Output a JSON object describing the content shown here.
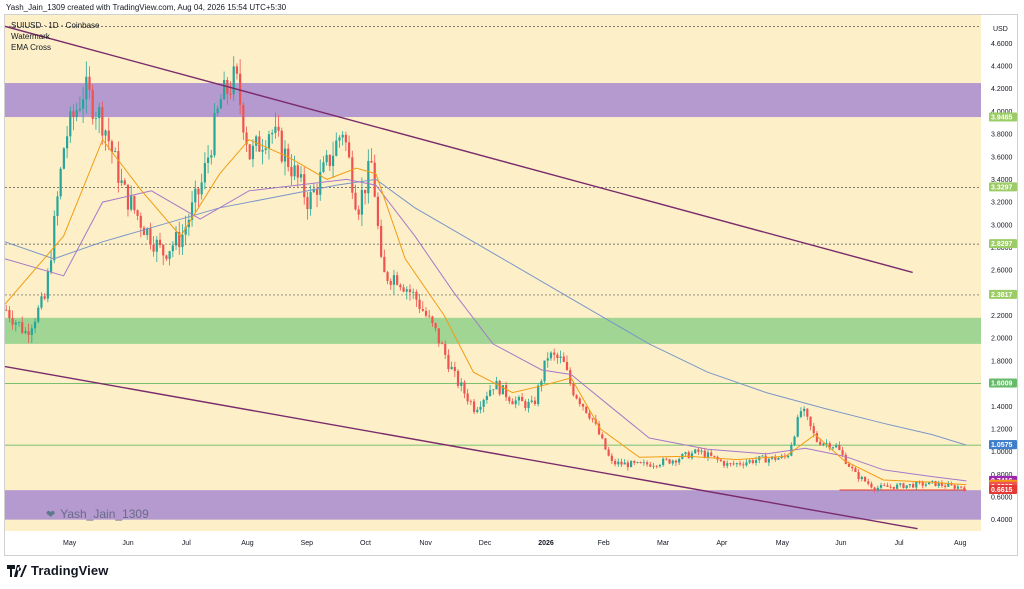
{
  "attribution": "Yash_Jain_1309 created with TradingView.com, Aug 04, 2026 15:54 UTC+5:30",
  "symbol": {
    "title": "SUIUSD · 1D · Coinbase",
    "watermark_label": "Watermark",
    "indicator": "EMA Cross"
  },
  "watermark_text": "Yash_Jain_1309",
  "brand": "TradingView",
  "colors": {
    "background": "#fdf0c8",
    "bull": "#26a69a",
    "bear": "#ef5350",
    "ema_fast": "#f39c12",
    "ema_mid": "#a678c8",
    "ema_slow": "#7b96c9",
    "zone_purple": "#a78bd0",
    "zone_green": "#8fd08a",
    "channel": "#7b2b6b",
    "support_red": "#e53935"
  },
  "chart_data": {
    "type": "candlestick",
    "currency": "USD",
    "ylim": [
      0.3,
      4.85
    ],
    "y_ticks": [
      "4.6000",
      "4.4000",
      "4.2000",
      "4.0000",
      "3.8000",
      "3.6000",
      "3.4000",
      "3.2000",
      "3.0000",
      "2.8000",
      "2.6000",
      "2.4000",
      "2.2000",
      "2.0000",
      "1.8000",
      "1.6000",
      "1.4000",
      "1.2000",
      "1.0000",
      "0.8000",
      "0.6000",
      "0.4000"
    ],
    "x_ticks": [
      "May",
      "Jun",
      "Jul",
      "Aug",
      "Sep",
      "Oct",
      "Nov",
      "Dec",
      "2026",
      "Feb",
      "Mar",
      "Apr",
      "May",
      "Jun",
      "Jul",
      "Aug"
    ],
    "price_labels": [
      {
        "value": 3.9465,
        "text": "3.9465",
        "bg": "#9ccc65"
      },
      {
        "value": 3.3297,
        "text": "3.3297",
        "bg": "#9ccc65"
      },
      {
        "value": 2.8297,
        "text": "2.8297",
        "bg": "#9ccc65"
      },
      {
        "value": 2.3817,
        "text": "2.3817",
        "bg": "#9ccc65"
      },
      {
        "value": 1.6009,
        "text": "1.6009",
        "bg": "#66bb6a"
      },
      {
        "value": 1.0576,
        "text": "1.0576",
        "bg": "#5c9bd6"
      },
      {
        "value": 1.0575,
        "text": "1.0575",
        "bg": "#3f7ecb"
      },
      {
        "value": 0.7416,
        "text": "0.7416",
        "bg": "#9c27b0"
      },
      {
        "value": 0.7073,
        "text": "0.7073",
        "bg": "#f39c12"
      },
      {
        "value": 0.6897,
        "text": "0.6897",
        "bg": "#ef5350"
      },
      {
        "value": 0.6615,
        "text": "0.6615",
        "bg": "#e53935"
      }
    ],
    "zones": [
      {
        "name": "resistance",
        "from": 3.95,
        "to": 4.25,
        "color": "#a78bd0"
      },
      {
        "name": "support",
        "from": 1.95,
        "to": 2.18,
        "color": "#8fd08a"
      },
      {
        "name": "base",
        "from": 0.4,
        "to": 0.66,
        "color": "#a78bd0"
      }
    ],
    "horizontal_lines": [
      {
        "value": 3.3297,
        "style": "dashed"
      },
      {
        "value": 2.8297,
        "style": "dashed"
      },
      {
        "value": 2.3817,
        "style": "dashed"
      },
      {
        "value": 1.6009,
        "style": "solid"
      },
      {
        "value": 1.0575,
        "style": "solid"
      },
      {
        "value": 4.75,
        "style": "dashed"
      }
    ],
    "channel": {
      "upper": [
        {
          "t": 0,
          "p": 4.75
        },
        {
          "t": 0.93,
          "p": 2.58
        }
      ],
      "lower": [
        {
          "t": 0,
          "p": 1.75
        },
        {
          "t": 0.935,
          "p": 0.32
        }
      ]
    },
    "close_path": [
      {
        "t": 0.0,
        "p": 2.25
      },
      {
        "t": 0.02,
        "p": 2.05
      },
      {
        "t": 0.04,
        "p": 2.35
      },
      {
        "t": 0.06,
        "p": 3.75
      },
      {
        "t": 0.08,
        "p": 4.2
      },
      {
        "t": 0.1,
        "p": 3.9
      },
      {
        "t": 0.12,
        "p": 3.3
      },
      {
        "t": 0.14,
        "p": 3.0
      },
      {
        "t": 0.16,
        "p": 2.75
      },
      {
        "t": 0.18,
        "p": 2.9
      },
      {
        "t": 0.2,
        "p": 3.35
      },
      {
        "t": 0.22,
        "p": 4.1
      },
      {
        "t": 0.235,
        "p": 4.3
      },
      {
        "t": 0.25,
        "p": 3.6
      },
      {
        "t": 0.27,
        "p": 3.85
      },
      {
        "t": 0.29,
        "p": 3.55
      },
      {
        "t": 0.31,
        "p": 3.2
      },
      {
        "t": 0.33,
        "p": 3.55
      },
      {
        "t": 0.345,
        "p": 3.85
      },
      {
        "t": 0.36,
        "p": 3.15
      },
      {
        "t": 0.375,
        "p": 3.55
      },
      {
        "t": 0.385,
        "p": 2.55
      },
      {
        "t": 0.4,
        "p": 2.55
      },
      {
        "t": 0.42,
        "p": 2.35
      },
      {
        "t": 0.44,
        "p": 2.05
      },
      {
        "t": 0.46,
        "p": 1.65
      },
      {
        "t": 0.48,
        "p": 1.38
      },
      {
        "t": 0.5,
        "p": 1.6
      },
      {
        "t": 0.52,
        "p": 1.45
      },
      {
        "t": 0.54,
        "p": 1.4
      },
      {
        "t": 0.555,
        "p": 1.85
      },
      {
        "t": 0.57,
        "p": 1.8
      },
      {
        "t": 0.58,
        "p": 1.55
      },
      {
        "t": 0.6,
        "p": 1.3
      },
      {
        "t": 0.62,
        "p": 0.9
      },
      {
        "t": 0.65,
        "p": 0.88
      },
      {
        "t": 0.68,
        "p": 0.92
      },
      {
        "t": 0.71,
        "p": 1.0
      },
      {
        "t": 0.74,
        "p": 0.88
      },
      {
        "t": 0.77,
        "p": 0.93
      },
      {
        "t": 0.8,
        "p": 0.95
      },
      {
        "t": 0.815,
        "p": 1.38
      },
      {
        "t": 0.83,
        "p": 1.1
      },
      {
        "t": 0.85,
        "p": 1.05
      },
      {
        "t": 0.87,
        "p": 0.8
      },
      {
        "t": 0.89,
        "p": 0.68
      },
      {
        "t": 0.92,
        "p": 0.7
      },
      {
        "t": 0.95,
        "p": 0.72
      },
      {
        "t": 0.97,
        "p": 0.69
      },
      {
        "t": 0.985,
        "p": 0.69
      }
    ],
    "ema_fast_path": [
      {
        "t": 0.0,
        "p": 2.3
      },
      {
        "t": 0.06,
        "p": 2.9
      },
      {
        "t": 0.1,
        "p": 3.75
      },
      {
        "t": 0.14,
        "p": 3.3
      },
      {
        "t": 0.18,
        "p": 2.9
      },
      {
        "t": 0.22,
        "p": 3.45
      },
      {
        "t": 0.25,
        "p": 3.75
      },
      {
        "t": 0.29,
        "p": 3.6
      },
      {
        "t": 0.33,
        "p": 3.4
      },
      {
        "t": 0.36,
        "p": 3.5
      },
      {
        "t": 0.38,
        "p": 3.45
      },
      {
        "t": 0.41,
        "p": 2.7
      },
      {
        "t": 0.45,
        "p": 2.2
      },
      {
        "t": 0.48,
        "p": 1.7
      },
      {
        "t": 0.52,
        "p": 1.52
      },
      {
        "t": 0.55,
        "p": 1.58
      },
      {
        "t": 0.58,
        "p": 1.65
      },
      {
        "t": 0.61,
        "p": 1.2
      },
      {
        "t": 0.65,
        "p": 0.95
      },
      {
        "t": 0.7,
        "p": 0.96
      },
      {
        "t": 0.75,
        "p": 0.93
      },
      {
        "t": 0.8,
        "p": 0.96
      },
      {
        "t": 0.83,
        "p": 1.15
      },
      {
        "t": 0.86,
        "p": 0.92
      },
      {
        "t": 0.9,
        "p": 0.75
      },
      {
        "t": 0.95,
        "p": 0.73
      },
      {
        "t": 0.985,
        "p": 0.707
      }
    ],
    "ema_mid_path": [
      {
        "t": 0.0,
        "p": 2.7
      },
      {
        "t": 0.06,
        "p": 2.55
      },
      {
        "t": 0.1,
        "p": 3.2
      },
      {
        "t": 0.15,
        "p": 3.3
      },
      {
        "t": 0.2,
        "p": 3.05
      },
      {
        "t": 0.25,
        "p": 3.3
      },
      {
        "t": 0.3,
        "p": 3.35
      },
      {
        "t": 0.35,
        "p": 3.4
      },
      {
        "t": 0.38,
        "p": 3.35
      },
      {
        "t": 0.42,
        "p": 2.9
      },
      {
        "t": 0.46,
        "p": 2.4
      },
      {
        "t": 0.5,
        "p": 1.95
      },
      {
        "t": 0.55,
        "p": 1.72
      },
      {
        "t": 0.58,
        "p": 1.68
      },
      {
        "t": 0.62,
        "p": 1.4
      },
      {
        "t": 0.66,
        "p": 1.12
      },
      {
        "t": 0.72,
        "p": 1.02
      },
      {
        "t": 0.78,
        "p": 0.98
      },
      {
        "t": 0.82,
        "p": 1.03
      },
      {
        "t": 0.86,
        "p": 0.96
      },
      {
        "t": 0.9,
        "p": 0.84
      },
      {
        "t": 0.95,
        "p": 0.78
      },
      {
        "t": 0.985,
        "p": 0.742
      }
    ],
    "ema_slow_path": [
      {
        "t": 0.0,
        "p": 2.85
      },
      {
        "t": 0.05,
        "p": 2.7
      },
      {
        "t": 0.1,
        "p": 2.85
      },
      {
        "t": 0.16,
        "p": 3.0
      },
      {
        "t": 0.22,
        "p": 3.15
      },
      {
        "t": 0.28,
        "p": 3.25
      },
      {
        "t": 0.34,
        "p": 3.35
      },
      {
        "t": 0.38,
        "p": 3.4
      },
      {
        "t": 0.42,
        "p": 3.15
      },
      {
        "t": 0.48,
        "p": 2.85
      },
      {
        "t": 0.54,
        "p": 2.55
      },
      {
        "t": 0.6,
        "p": 2.25
      },
      {
        "t": 0.66,
        "p": 1.95
      },
      {
        "t": 0.72,
        "p": 1.7
      },
      {
        "t": 0.78,
        "p": 1.52
      },
      {
        "t": 0.84,
        "p": 1.38
      },
      {
        "t": 0.9,
        "p": 1.25
      },
      {
        "t": 0.95,
        "p": 1.15
      },
      {
        "t": 0.985,
        "p": 1.0575
      }
    ]
  }
}
